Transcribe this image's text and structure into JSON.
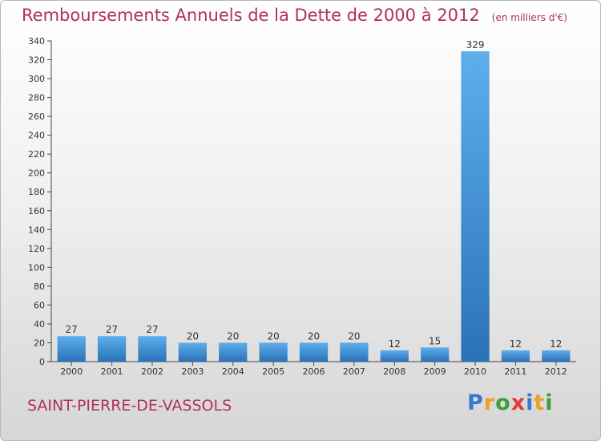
{
  "title": "Remboursements Annuels de la Dette de 2000 à 2012",
  "unit": "(en milliers d'€)",
  "commune": "SAINT-PIERRE-DE-VASSOLS",
  "logo": {
    "letters": [
      "P",
      "r",
      "o",
      "x",
      "i",
      "t",
      "i"
    ],
    "colors": [
      "#3a78c8",
      "#f0a020",
      "#3aa03a",
      "#e03a3a",
      "#3a78c8",
      "#f0a020",
      "#3aa03a"
    ]
  },
  "colors": {
    "bar": "#3f8fd6",
    "bar_light": "#5eaeec",
    "bar_dark": "#2a72b8",
    "title": "#b0305e"
  },
  "chart_data": {
    "type": "bar",
    "categories": [
      "2000",
      "2001",
      "2002",
      "2003",
      "2004",
      "2005",
      "2006",
      "2007",
      "2008",
      "2009",
      "2010",
      "2011",
      "2012"
    ],
    "values": [
      27,
      27,
      27,
      20,
      20,
      20,
      20,
      20,
      12,
      15,
      329,
      12,
      12
    ],
    "ylim": [
      0,
      340
    ],
    "ytick_step": 20,
    "grid": false,
    "data_labels": true
  }
}
